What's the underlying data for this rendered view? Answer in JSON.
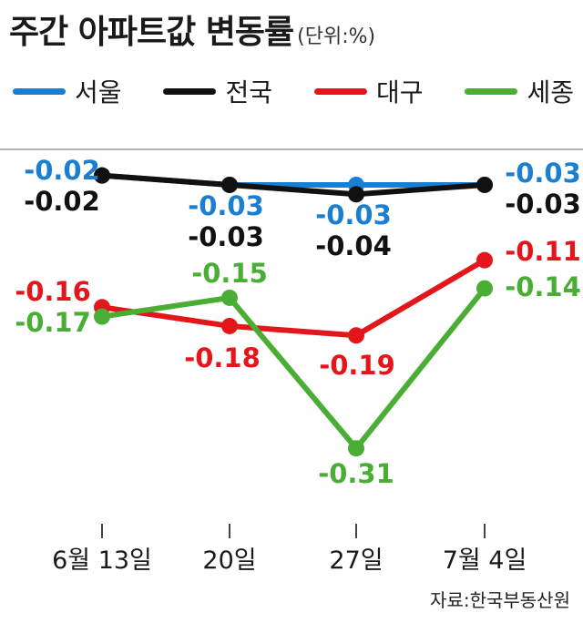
{
  "header": {
    "title": "주간 아파트값 변동률",
    "unit": "(단위:%)"
  },
  "source": "자료:한국부동산원",
  "colors": {
    "seoul": "#1a7fd1",
    "national": "#111111",
    "daegu": "#e3161b",
    "sejong": "#4aae34",
    "axis": "#444444"
  },
  "chart_data": {
    "type": "line",
    "categories": [
      "6월 13일",
      "20일",
      "27일",
      "7월 4일"
    ],
    "series": [
      {
        "name": "서울",
        "values": [
          -0.02,
          -0.03,
          -0.03,
          -0.03
        ],
        "labels": [
          "-0.02",
          "-0.03",
          "-0.03",
          "-0.03"
        ]
      },
      {
        "name": "전국",
        "values": [
          -0.02,
          -0.03,
          -0.04,
          -0.03
        ],
        "labels": [
          "-0.02",
          "-0.03",
          "-0.04",
          "-0.03"
        ]
      },
      {
        "name": "대구",
        "values": [
          -0.16,
          -0.18,
          -0.19,
          -0.11
        ],
        "labels": [
          "-0.16",
          "-0.18",
          "-0.19",
          "-0.11"
        ]
      },
      {
        "name": "세종",
        "values": [
          -0.17,
          -0.15,
          -0.31,
          -0.14
        ],
        "labels": [
          "-0.17",
          "-0.15",
          "-0.31",
          "-0.14"
        ]
      }
    ],
    "legend_position": "top"
  }
}
